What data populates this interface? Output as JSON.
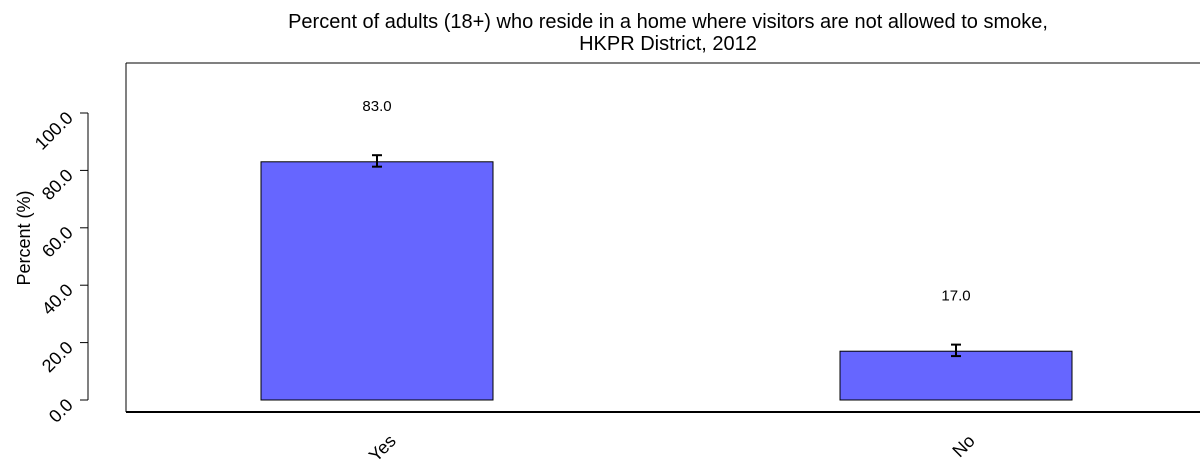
{
  "chart_data": {
    "type": "bar",
    "title": "Percent of adults (18+) who reside in a home where visitors are not allowed to smoke,",
    "subtitle": "HKPR District, 2012",
    "xlabel": "",
    "ylabel": "Percent (%)",
    "categories": [
      "Yes",
      "No"
    ],
    "values": [
      83.0,
      17.0
    ],
    "value_labels": [
      "83.0",
      "17.0"
    ],
    "error_low": [
      81.3,
      15.3
    ],
    "error_high": [
      85.3,
      19.3
    ],
    "ylim": [
      0,
      100
    ],
    "yticks": [
      0,
      20,
      40,
      60,
      80,
      100
    ],
    "ytick_labels": [
      "0.0",
      "20.0",
      "40.0",
      "60.0",
      "80.0",
      "100.0"
    ],
    "bar_color": "#6666ff",
    "bar_edge_color": "#000000",
    "grid": false,
    "legend": "none"
  }
}
